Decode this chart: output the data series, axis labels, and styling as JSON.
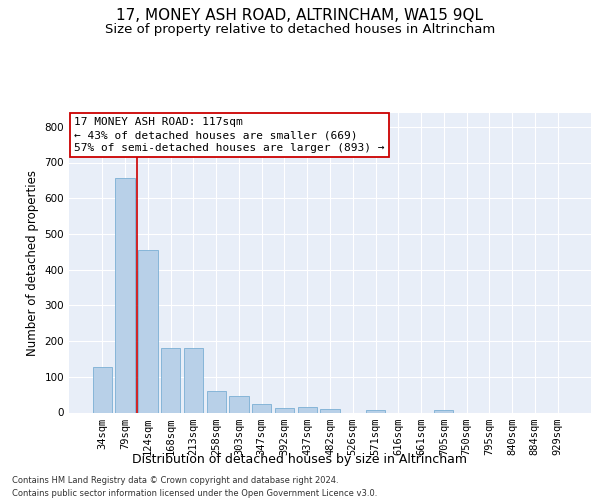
{
  "title": "17, MONEY ASH ROAD, ALTRINCHAM, WA15 9QL",
  "subtitle": "Size of property relative to detached houses in Altrincham",
  "xlabel": "Distribution of detached houses by size in Altrincham",
  "ylabel": "Number of detached properties",
  "categories": [
    "34sqm",
    "79sqm",
    "124sqm",
    "168sqm",
    "213sqm",
    "258sqm",
    "303sqm",
    "347sqm",
    "392sqm",
    "437sqm",
    "482sqm",
    "526sqm",
    "571sqm",
    "616sqm",
    "661sqm",
    "705sqm",
    "750sqm",
    "795sqm",
    "840sqm",
    "884sqm",
    "929sqm"
  ],
  "values": [
    127,
    657,
    454,
    180,
    180,
    60,
    46,
    25,
    12,
    15,
    10,
    0,
    8,
    0,
    0,
    8,
    0,
    0,
    0,
    0,
    0
  ],
  "bar_color": "#b8d0e8",
  "bar_edgecolor": "#7bafd4",
  "vline_color": "#cc0000",
  "vline_x_index": 1.5,
  "annotation_line1": "17 MONEY ASH ROAD: 117sqm",
  "annotation_line2": "← 43% of detached houses are smaller (669)",
  "annotation_line3": "57% of semi-detached houses are larger (893) →",
  "annotation_box_color": "#ffffff",
  "annotation_box_edgecolor": "#cc0000",
  "ylim": [
    0,
    840
  ],
  "yticks": [
    0,
    100,
    200,
    300,
    400,
    500,
    600,
    700,
    800
  ],
  "background_color": "#e8eef8",
  "grid_color": "#ffffff",
  "footer_line1": "Contains HM Land Registry data © Crown copyright and database right 2024.",
  "footer_line2": "Contains public sector information licensed under the Open Government Licence v3.0.",
  "title_fontsize": 11,
  "subtitle_fontsize": 9.5,
  "xlabel_fontsize": 9,
  "ylabel_fontsize": 8.5,
  "tick_fontsize": 7.5,
  "annotation_fontsize": 8,
  "footer_fontsize": 6
}
